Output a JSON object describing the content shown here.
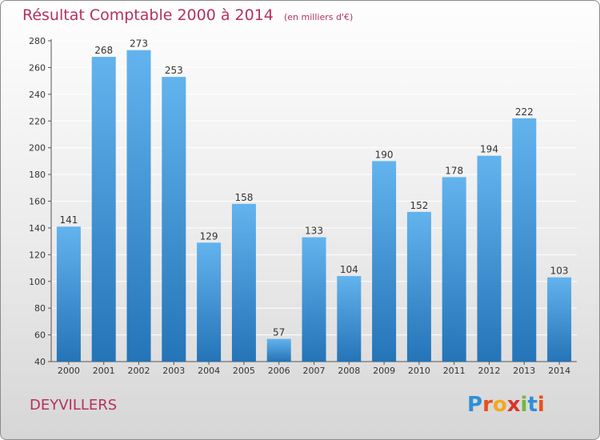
{
  "header": {
    "title": "Résultat Comptable 2000 à 2014",
    "subtitle": "(en milliers d'€)"
  },
  "footer": {
    "commune": "DEYVILLERS",
    "logo_text": "Proxiti",
    "logo_colors": [
      "#2f8fd6",
      "#e8501c",
      "#f3a81c",
      "#d9352b",
      "#71b83c",
      "#2f8fd6",
      "#e8501c"
    ]
  },
  "colors": {
    "title": "#b5315a",
    "bar_top": "#63b3ee",
    "bar_bottom": "#2474b8",
    "grid": "#ffffff"
  },
  "chart_data": {
    "type": "bar",
    "title": "Résultat Comptable 2000 à 2014",
    "subtitle": "(en milliers d'€)",
    "categories": [
      "2000",
      "2001",
      "2002",
      "2003",
      "2004",
      "2005",
      "2006",
      "2007",
      "2008",
      "2009",
      "2010",
      "2011",
      "2012",
      "2013",
      "2014"
    ],
    "values": [
      141,
      268,
      273,
      253,
      129,
      158,
      57,
      133,
      104,
      190,
      152,
      178,
      194,
      222,
      103
    ],
    "ylim": [
      40,
      280
    ],
    "yticks": [
      40,
      60,
      80,
      100,
      120,
      140,
      160,
      180,
      200,
      220,
      240,
      260,
      280
    ],
    "grid": true,
    "data_labels": true
  }
}
